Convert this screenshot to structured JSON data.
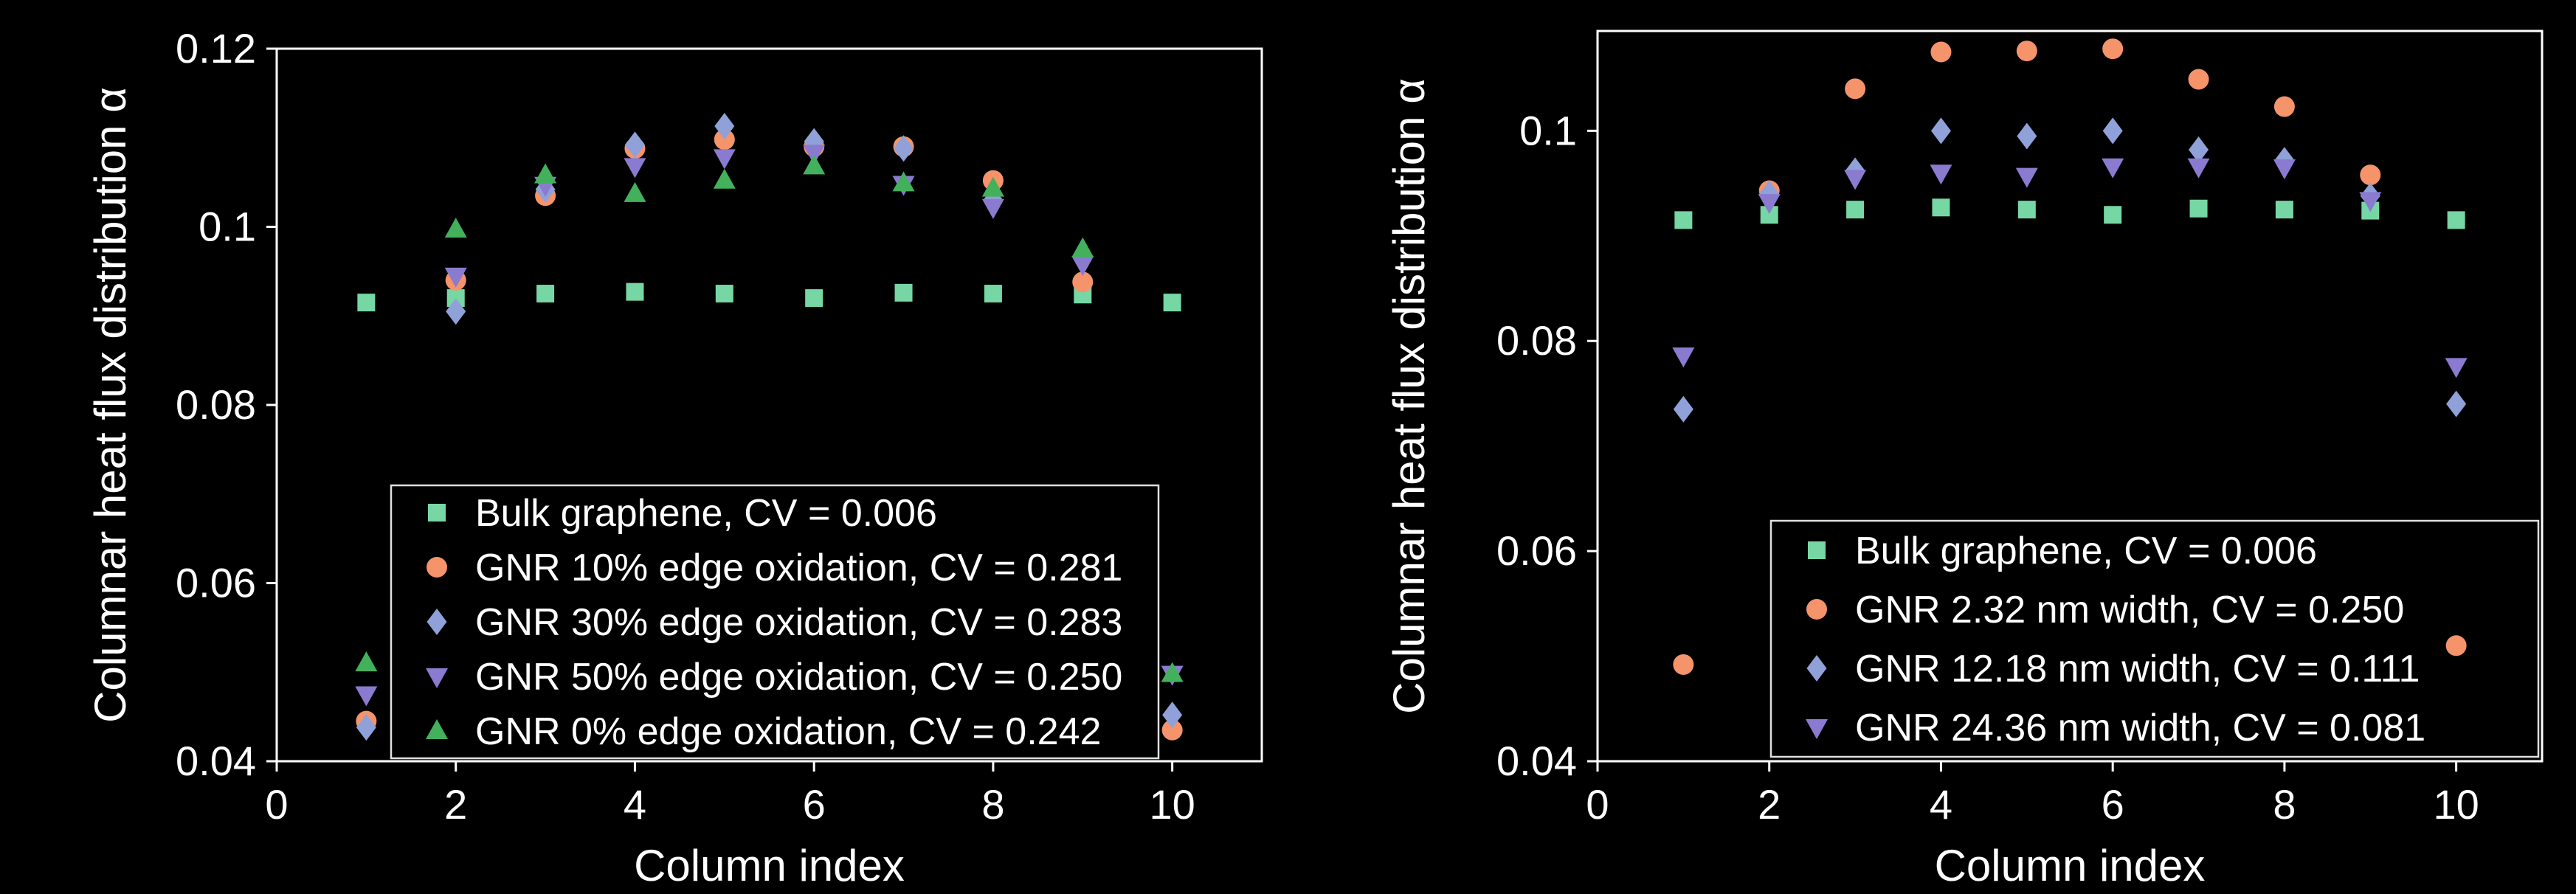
{
  "page": {
    "background": "#000000",
    "foreground": "#ffffff",
    "legend_border": "#e0e0e0"
  },
  "chart_data": [
    {
      "type": "scatter",
      "title": "",
      "xlabel": "Column index",
      "ylabel": "Columnar heat flux distribution α",
      "xlim": [
        0,
        11
      ],
      "ylim": [
        0.04,
        0.12
      ],
      "xticks": [
        0,
        2,
        4,
        6,
        8,
        10
      ],
      "yticks": [
        0.04,
        0.06,
        0.08,
        0.1,
        0.12
      ],
      "grid": false,
      "legend_position": "inside-lower-center",
      "x": [
        1,
        2,
        3,
        4,
        5,
        6,
        7,
        8,
        9,
        10
      ],
      "series": [
        {
          "name": "Bulk graphene, CV = 0.006",
          "marker": "square",
          "color": "#76D7A4",
          "values": [
            0.0915,
            0.092,
            0.0925,
            0.0927,
            0.0925,
            0.092,
            0.0926,
            0.0925,
            0.0924,
            0.0915
          ]
        },
        {
          "name": "GNR 10% edge oxidation, CV = 0.281",
          "marker": "circle",
          "color": "#F5936B",
          "values": [
            0.0445,
            0.094,
            0.1035,
            0.1088,
            0.1098,
            0.109,
            0.109,
            0.1052,
            0.0938,
            0.0435
          ]
        },
        {
          "name": "GNR 30% edge oxidation, CV = 0.283",
          "marker": "diamond",
          "color": "#8FA1D8",
          "values": [
            0.0438,
            0.0905,
            0.1042,
            0.1092,
            0.1113,
            0.1096,
            0.1088,
            0.103,
            0.0968,
            0.0452
          ]
        },
        {
          "name": "GNR 50% edge oxidation, CV = 0.250",
          "marker": "triangle-down",
          "color": "#8A7BD0",
          "values": [
            0.0475,
            0.0945,
            0.1047,
            0.1068,
            0.1078,
            0.1083,
            0.1048,
            0.1022,
            0.0958,
            0.0498
          ]
        },
        {
          "name": "GNR 0% edge oxidation, CV = 0.242",
          "marker": "triangle-up",
          "color": "#43B05C",
          "values": [
            0.051,
            0.0997,
            0.1058,
            0.1037,
            0.1052,
            0.1068,
            0.1049,
            0.1043,
            0.0975,
            0.0498
          ]
        }
      ]
    },
    {
      "type": "scatter",
      "title": "",
      "xlabel": "Column index",
      "ylabel": "Columnar heat flux distribution α",
      "xlim": [
        0,
        11
      ],
      "ylim": [
        0.04,
        0.1095
      ],
      "xticks": [
        0,
        2,
        4,
        6,
        8,
        10
      ],
      "yticks": [
        0.04,
        0.06,
        0.08,
        0.1
      ],
      "grid": false,
      "legend_position": "inside-lower-center",
      "x": [
        1,
        2,
        3,
        4,
        5,
        6,
        7,
        8,
        9,
        10
      ],
      "series": [
        {
          "name": "Bulk graphene, CV = 0.006",
          "marker": "square",
          "color": "#76D7A4",
          "values": [
            0.0915,
            0.092,
            0.0925,
            0.0927,
            0.0925,
            0.092,
            0.0926,
            0.0925,
            0.0924,
            0.0915
          ]
        },
        {
          "name": "GNR 2.32 nm width, CV = 0.250",
          "marker": "circle",
          "color": "#F5936B",
          "values": [
            0.0492,
            0.0943,
            0.104,
            0.1075,
            0.1076,
            0.1078,
            0.1049,
            0.1023,
            0.0958,
            0.051
          ]
        },
        {
          "name": "GNR 12.18 nm width, CV = 0.111",
          "marker": "diamond",
          "color": "#8FA1D8",
          "values": [
            0.0735,
            0.094,
            0.0962,
            0.1,
            0.0995,
            0.1,
            0.0982,
            0.0972,
            0.0938,
            0.074
          ]
        },
        {
          "name": "GNR 24.36 nm width, CV = 0.081",
          "marker": "triangle-down",
          "color": "#8A7BD0",
          "values": [
            0.0786,
            0.0932,
            0.0955,
            0.096,
            0.0957,
            0.0966,
            0.0966,
            0.0965,
            0.0934,
            0.0776
          ]
        }
      ]
    }
  ]
}
